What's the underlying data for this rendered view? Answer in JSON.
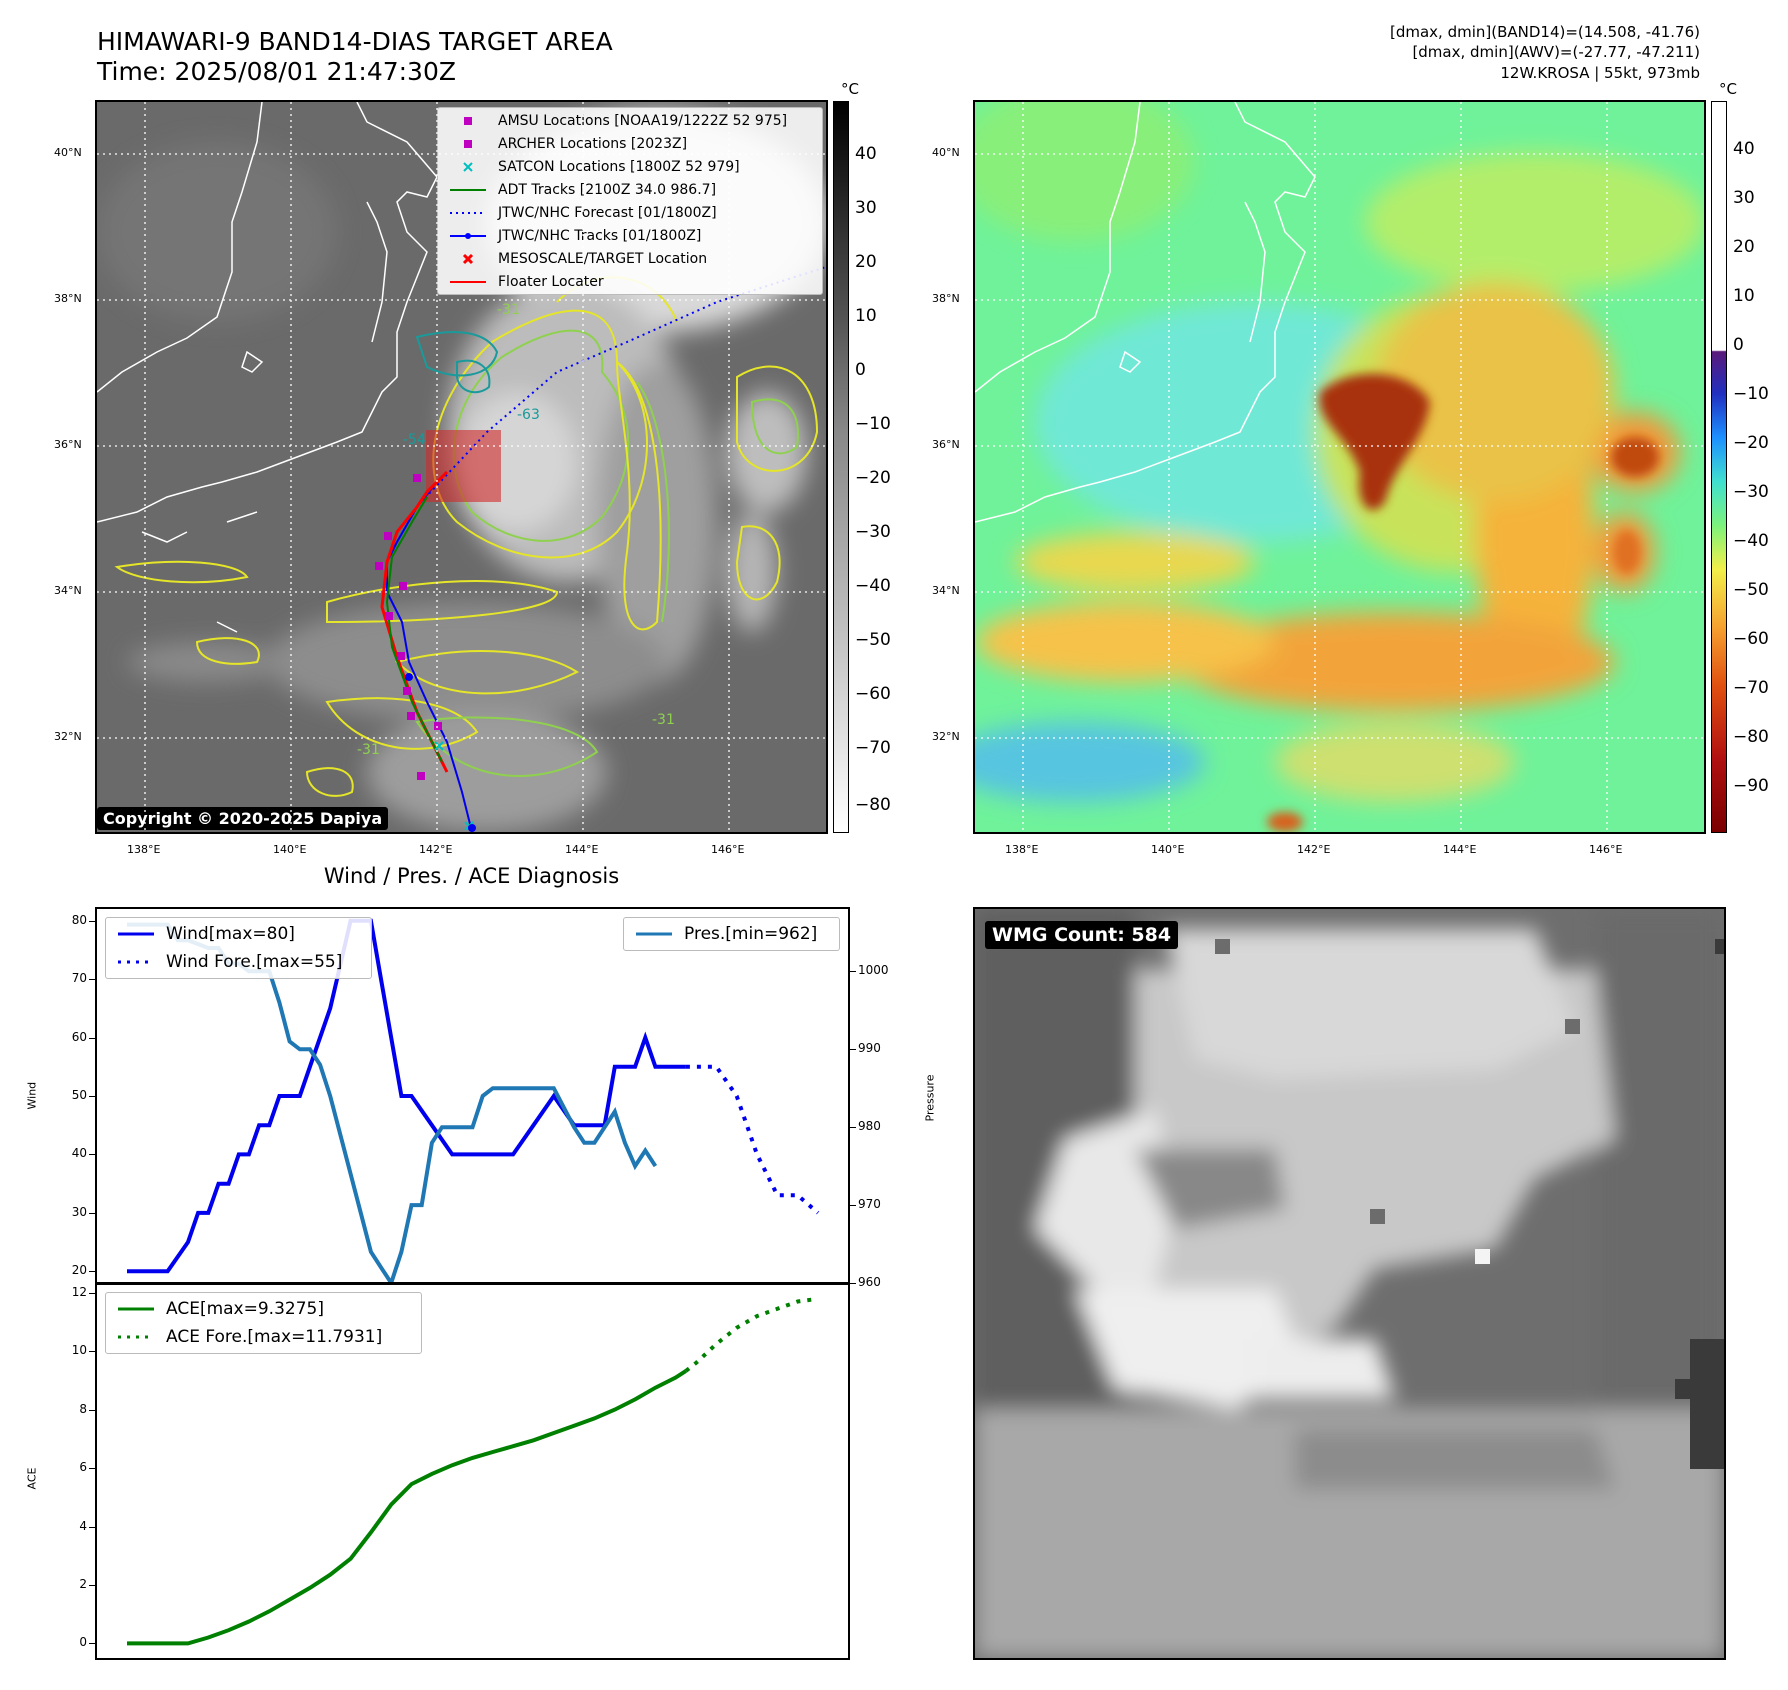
{
  "header": {
    "title_line1": "HIMAWARI-9 BAND14-DIAS TARGET AREA",
    "title_line2": "Time: 2025/08/01 21:47:30Z",
    "info_line1": "[dmax, dmin](BAND14)=(14.508, -41.76)",
    "info_line2": "[dmax, dmin](AWV)=(-27.77, -47.211)",
    "info_line3": "12W.KROSA | 55kt, 973mb"
  },
  "ir_map": {
    "lat_labels": [
      "40°N",
      "38°N",
      "36°N",
      "34°N",
      "32°N"
    ],
    "lon_labels": [
      "138°E",
      "140°E",
      "142°E",
      "144°E",
      "146°E"
    ],
    "copyright": "Copyright © 2020-2025 Dapiya",
    "contour_labels": [
      "-31",
      "-54",
      "-63",
      "-31",
      "-31"
    ],
    "legend": [
      {
        "label": "AMSU Locations [NOAA19/1222Z 52 975]",
        "marker": "square",
        "color": "#c000c0"
      },
      {
        "label": "ARCHER Locations [2023Z]",
        "marker": "square",
        "color": "#c000c0"
      },
      {
        "label": "SATCON Locations [1800Z 52 979]",
        "marker": "x",
        "color": "#00bfbf"
      },
      {
        "label": "ADT Tracks [2100Z 34.0 986.7]",
        "marker": "line",
        "color": "#008000"
      },
      {
        "label": "JTWC/NHC Forecast [01/1800Z]",
        "marker": "dotted",
        "color": "#0000ff"
      },
      {
        "label": "JTWC/NHC Tracks [01/1800Z]",
        "marker": "line-dot",
        "color": "#0000ff"
      },
      {
        "label": "MESOSCALE/TARGET Location",
        "marker": "x",
        "color": "#ff0000"
      },
      {
        "label": "Floater Locater",
        "marker": "line",
        "color": "#ff0000"
      }
    ],
    "colorbar": {
      "unit": "°C",
      "ticks": [
        "40",
        "30",
        "20",
        "10",
        "0",
        "−10",
        "−20",
        "−30",
        "−40",
        "−50",
        "−60",
        "−70",
        "−80"
      ]
    }
  },
  "awv_map": {
    "lat_labels": [
      "40°N",
      "38°N",
      "36°N",
      "34°N",
      "32°N"
    ],
    "lon_labels": [
      "138°E",
      "140°E",
      "142°E",
      "144°E",
      "146°E"
    ],
    "colorbar": {
      "unit": "°C",
      "ticks": [
        "40",
        "30",
        "20",
        "10",
        "0",
        "−10",
        "−20",
        "−30",
        "−40",
        "−50",
        "−60",
        "−70",
        "−80",
        "−90"
      ]
    }
  },
  "wmg": {
    "count_label": "WMG Count: 584"
  },
  "chart_data": [
    {
      "type": "line",
      "title": "Wind / Pres. / ACE Diagnosis",
      "ylabel": "Wind",
      "ylabel_right": "Pressure",
      "ylim": [
        18,
        82
      ],
      "ylim_right": [
        960,
        1008
      ],
      "yticks": [
        "80",
        "70",
        "60",
        "50",
        "40",
        "30",
        "20"
      ],
      "yticks_right": [
        "1000",
        "990",
        "980",
        "970",
        "960"
      ],
      "xlim": [
        0,
        34
      ],
      "legend_left": [
        "Wind[max=80]",
        "Wind Fore.[max=55]"
      ],
      "legend_right": [
        "Pres.[min=962]"
      ],
      "series": [
        {
          "name": "Wind[max=80]",
          "color": "#0000ee",
          "style": "solid",
          "axis": "left",
          "x": [
            0,
            2,
            3,
            3.5,
            4,
            4.5,
            5,
            5.5,
            6,
            6.5,
            7,
            7.5,
            8,
            8.5,
            9,
            10,
            11,
            12,
            12.5,
            13,
            13.5,
            14,
            15,
            16,
            16.5,
            17,
            18,
            19,
            20,
            21,
            22,
            23,
            23.5,
            24,
            25,
            25.5,
            26,
            27,
            27.5
          ],
          "y": [
            20,
            20,
            25,
            30,
            30,
            35,
            35,
            40,
            40,
            45,
            45,
            50,
            50,
            50,
            55,
            65,
            80,
            80,
            70,
            60,
            50,
            50,
            45,
            40,
            40,
            40,
            40,
            40,
            45,
            50,
            45,
            45,
            45,
            55,
            55,
            60,
            55,
            55,
            55
          ]
        },
        {
          "name": "Wind Fore.[max=55]",
          "color": "#0000ee",
          "style": "dotted",
          "axis": "left",
          "x": [
            27.5,
            28,
            29,
            30,
            31,
            32,
            33,
            34
          ],
          "y": [
            55,
            55,
            55,
            50,
            40,
            33,
            33,
            30
          ]
        },
        {
          "name": "Pres.[min=962]",
          "color": "#1f77b4",
          "style": "solid",
          "axis": "right",
          "x": [
            0,
            1,
            2,
            2.5,
            3,
            4,
            4.5,
            5,
            5.5,
            6,
            6.5,
            7,
            7.5,
            8,
            8.5,
            9,
            9.5,
            10,
            11,
            12,
            12.5,
            13,
            13.5,
            14,
            14.5,
            15,
            15.5,
            16,
            17,
            17.5,
            18,
            19,
            20,
            21,
            22,
            22.5,
            23,
            24,
            24.5,
            25,
            25.5,
            26
          ],
          "y": [
            1006,
            1006,
            1006,
            1004,
            1004,
            1003,
            1003,
            1001,
            1001,
            1000,
            1000,
            1000,
            996,
            991,
            990,
            990,
            988,
            984,
            974,
            964,
            962,
            960,
            964,
            970,
            970,
            978,
            980,
            980,
            980,
            984,
            985,
            985,
            985,
            985,
            980,
            978,
            978,
            982,
            978,
            975,
            977,
            975
          ]
        }
      ]
    },
    {
      "type": "line",
      "ylabel": "ACE",
      "ylim": [
        -0.5,
        12.3
      ],
      "yticks": [
        "12",
        "10",
        "8",
        "6",
        "4",
        "2",
        "0"
      ],
      "xlim": [
        0,
        34
      ],
      "legend": [
        "ACE[max=9.3275]",
        "ACE Fore.[max=11.7931]"
      ],
      "series": [
        {
          "name": "ACE[max=9.3275]",
          "color": "#008000",
          "style": "solid",
          "x": [
            0,
            1,
            2,
            3,
            4,
            5,
            6,
            7,
            8,
            9,
            10,
            11,
            12,
            13,
            14,
            15,
            16,
            17,
            18,
            19,
            20,
            21,
            22,
            23,
            24,
            25,
            26,
            27,
            27.5
          ],
          "y": [
            0,
            0,
            0,
            0,
            0.2,
            0.45,
            0.75,
            1.1,
            1.5,
            1.9,
            2.35,
            2.9,
            3.8,
            4.75,
            5.45,
            5.8,
            6.1,
            6.35,
            6.55,
            6.75,
            6.95,
            7.2,
            7.45,
            7.7,
            8.0,
            8.35,
            8.75,
            9.1,
            9.3275
          ]
        },
        {
          "name": "ACE Fore.[max=11.7931]",
          "color": "#008000",
          "style": "dotted",
          "x": [
            27.5,
            28,
            29,
            30,
            31,
            32,
            33,
            34
          ],
          "y": [
            9.3275,
            9.6,
            10.25,
            10.8,
            11.2,
            11.45,
            11.7,
            11.7931
          ]
        }
      ]
    }
  ]
}
